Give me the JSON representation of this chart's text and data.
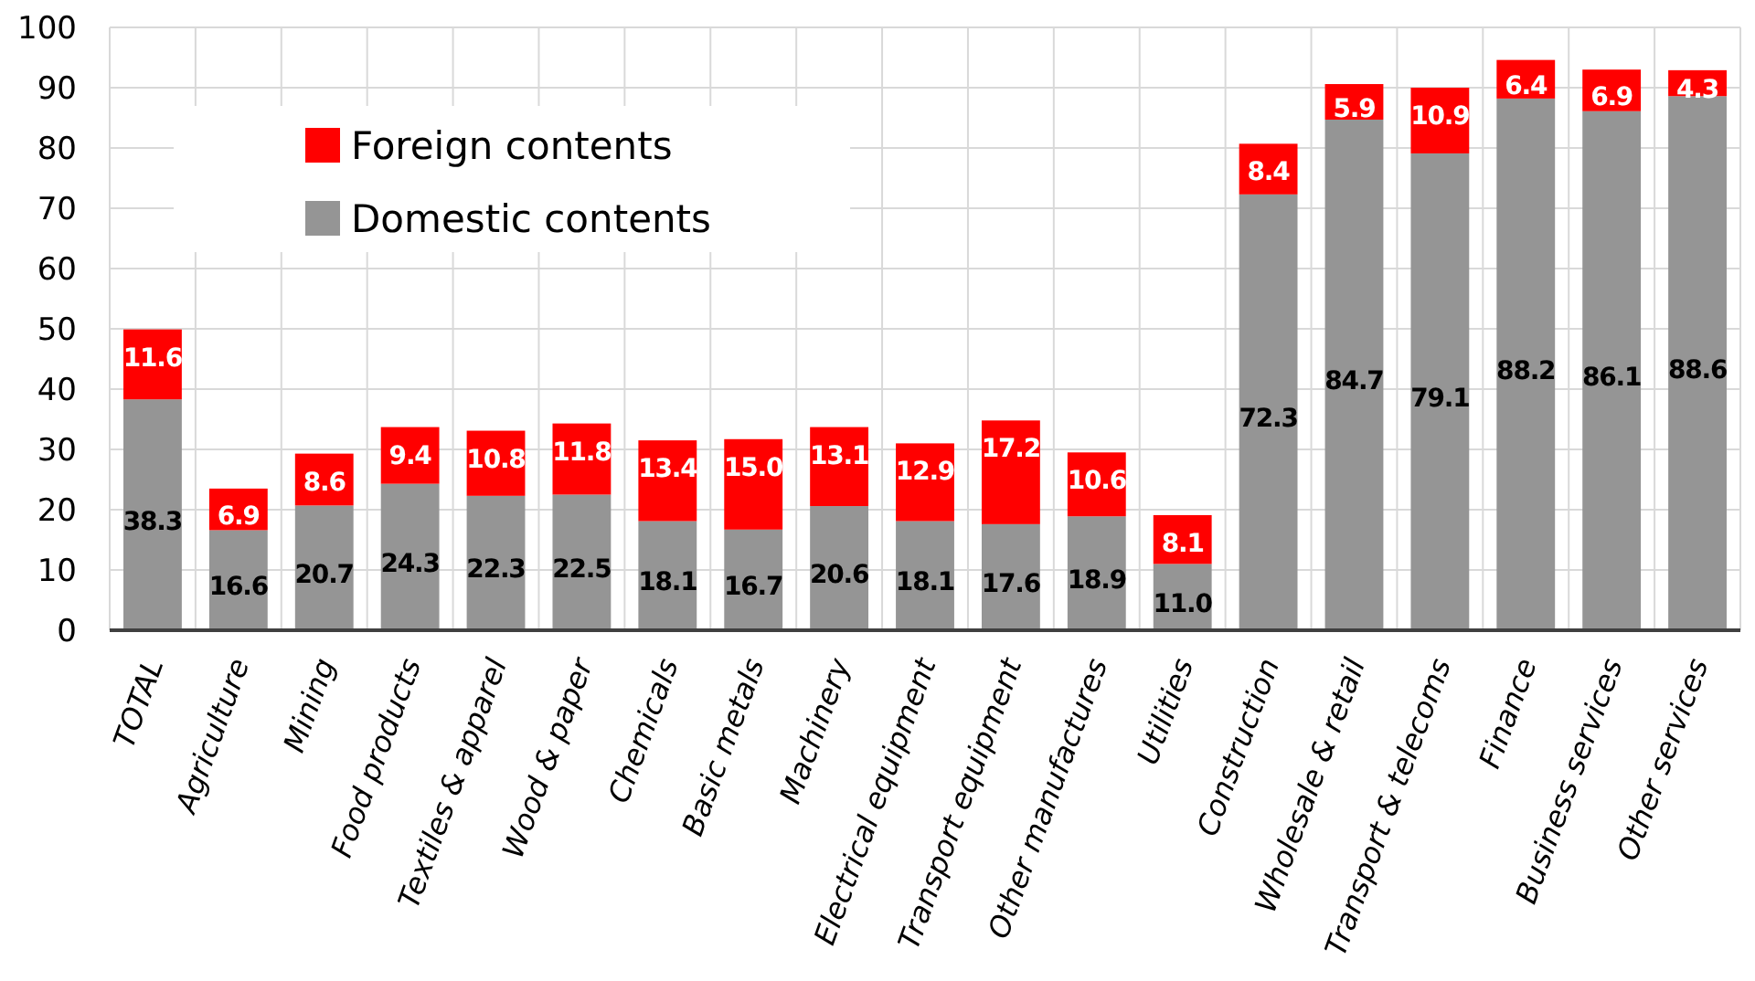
{
  "chart_data": {
    "type": "bar",
    "stacked": true,
    "categories": [
      "TOTAL",
      "Agriculture",
      "Mining",
      "Food products",
      "Textiles & apparel",
      "Wood & paper",
      "Chemicals",
      "Basic metals",
      "Machinery",
      "Electrical equipment",
      "Transport equipment",
      "Other manufactures",
      "Utilities",
      "Construction",
      "Wholesale & retail",
      "Transport & telecoms",
      "Finance",
      "Business services",
      "Other services"
    ],
    "series": [
      {
        "name": "Domestic contents",
        "color": "#959595",
        "values": [
          38.3,
          16.6,
          20.7,
          24.3,
          22.3,
          22.5,
          18.1,
          16.7,
          20.6,
          18.1,
          17.6,
          18.9,
          11.0,
          72.3,
          84.7,
          79.1,
          88.2,
          86.1,
          88.6
        ],
        "value_labels": [
          "38.3",
          "16.6",
          "20.7",
          "24.3",
          "22.3",
          "22.5",
          "18.1",
          "16.7",
          "20.6",
          "18.1",
          "17.6",
          "18.9",
          "11.0",
          "72.3",
          "84.7",
          "79.1",
          "88.2",
          "86.1",
          "88.6"
        ]
      },
      {
        "name": "Foreign contents",
        "color": "#ff0000",
        "values": [
          11.6,
          6.9,
          8.6,
          9.4,
          10.8,
          11.8,
          13.4,
          15.0,
          13.1,
          12.9,
          17.2,
          10.6,
          8.1,
          8.4,
          5.9,
          10.9,
          6.4,
          6.9,
          4.3
        ],
        "value_labels": [
          "11.6",
          "6.9",
          "8.6",
          "9.4",
          "10.8",
          "11.8",
          "13.4",
          "15.0",
          "13.1",
          "12.9",
          "17.2",
          "10.6",
          "8.1",
          "8.4",
          "5.9",
          "10.9",
          "6.4",
          "6.9",
          "4.3"
        ]
      }
    ],
    "ylim": [
      0,
      100
    ],
    "yticks": [
      0,
      10,
      20,
      30,
      40,
      50,
      60,
      70,
      80,
      90,
      100
    ],
    "grid": true,
    "legend": "top left"
  }
}
